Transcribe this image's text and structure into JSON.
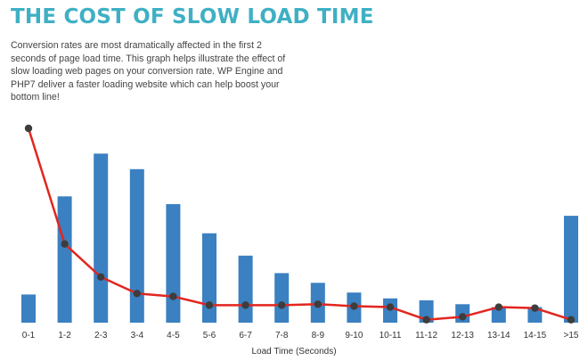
{
  "title": "THE COST OF SLOW LOAD TIME",
  "description": "Conversion rates are most dramatically affected in the first 2 seconds of page load time. This graph helps illustrate the effect of slow loading web pages on your conversion rate. WP Engine and PHP7 deliver a faster loading website which can help boost your bottom line!",
  "colors": {
    "bar": "#3b80c1",
    "line": "#e2261f",
    "point": "#3d3d3d",
    "title": "#3fb0c4"
  },
  "chart_data": {
    "type": "bar",
    "xlabel": "Load Time (Seconds)",
    "ylabel": "",
    "categories": [
      "0-1",
      "1-2",
      "2-3",
      "3-4",
      "4-5",
      "5-6",
      "6-7",
      "7-8",
      "8-9",
      "9-10",
      "10-11",
      "11-12",
      "12-13",
      "13-14",
      "14-15",
      ">15"
    ],
    "ylim": [
      0,
      100
    ],
    "series": [
      {
        "type": "bar",
        "values": [
          14.5,
          65,
          87,
          79,
          61,
          46,
          34.5,
          25.5,
          20.5,
          15.5,
          12.5,
          11.5,
          9.5,
          8,
          8,
          55
        ]
      },
      {
        "type": "line",
        "values": [
          100,
          40.5,
          23.5,
          15,
          13.5,
          9,
          9,
          9,
          9.5,
          8.5,
          8,
          1.5,
          3,
          8,
          7.5,
          1.5
        ]
      }
    ],
    "grid": false,
    "legend": "none"
  }
}
